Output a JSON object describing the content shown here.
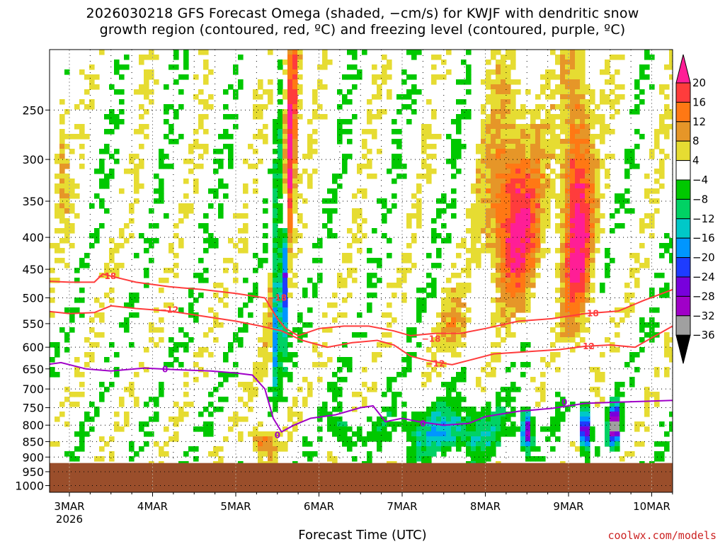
{
  "chart_data": {
    "type": "heatmap",
    "title_line1": "2026030218 GFS Forecast Omega (shaded, −cm/s) for KWJF with dendritic snow",
    "title_line2": "growth region (contoured, red, ºC) and freezing level (contoured, purple, ºC)",
    "xlabel": "Forecast Time (UTC)",
    "x_ticks": [
      "3MAR",
      "4MAR",
      "5MAR",
      "6MAR",
      "7MAR",
      "8MAR",
      "9MAR",
      "10MAR"
    ],
    "x_year": "2026",
    "y_ticks": [
      "250",
      "300",
      "350",
      "400",
      "450",
      "500",
      "550",
      "600",
      "650",
      "700",
      "750",
      "800",
      "850",
      "900",
      "950",
      "1000"
    ],
    "y_values": [
      250,
      300,
      350,
      400,
      450,
      500,
      550,
      600,
      650,
      700,
      750,
      800,
      850,
      900,
      950,
      1000
    ],
    "y_scale": "log-pressure, inverted",
    "ylim": [
      200,
      1025
    ],
    "xlim_days_label_range": [
      "3MAR",
      "10MAR"
    ],
    "grid": "dotted",
    "ground_level_hPa": 920,
    "ground_color": "#9a4e2b",
    "colorbar": {
      "ticks": [
        "20",
        "16",
        "12",
        "8",
        "4",
        "−4",
        "−8",
        "−12",
        "−16",
        "−20",
        "−24",
        "−28",
        "−32",
        "−36"
      ],
      "bands": [
        {
          "from": 20,
          "to": 24,
          "color": "#ff1e96"
        },
        {
          "from": 16,
          "to": 20,
          "color": "#ff3c3c"
        },
        {
          "from": 12,
          "to": 16,
          "color": "#ff7814"
        },
        {
          "from": 8,
          "to": 12,
          "color": "#e69628"
        },
        {
          "from": 4,
          "to": 8,
          "color": "#e6dc32"
        },
        {
          "from": -4,
          "to": 4,
          "color": "#ffffff"
        },
        {
          "from": -8,
          "to": -4,
          "color": "#00c800"
        },
        {
          "from": -12,
          "to": -8,
          "color": "#00d264"
        },
        {
          "from": -16,
          "to": -12,
          "color": "#00c8c8"
        },
        {
          "from": -20,
          "to": -16,
          "color": "#0096ff"
        },
        {
          "from": -24,
          "to": -20,
          "color": "#1e3cff"
        },
        {
          "from": -28,
          "to": -24,
          "color": "#7800dc"
        },
        {
          "from": -32,
          "to": -28,
          "color": "#a000c8"
        },
        {
          "from": -36,
          "to": -32,
          "color": "#a0a0a0"
        },
        {
          "from": -40,
          "to": -36,
          "color": "#000000"
        }
      ]
    },
    "contours": [
      {
        "name": "-18",
        "label": "−18",
        "color": "#ff3c3c",
        "x_day": [
          2.71,
          3.0,
          3.3,
          3.4,
          3.6,
          3.8,
          4.2,
          4.6,
          5.0,
          5.35,
          5.5,
          5.6,
          5.75,
          6.0,
          6.3,
          6.6,
          6.9,
          7.1,
          7.4,
          7.7,
          8.0,
          8.4,
          8.8,
          9.2,
          9.6,
          9.9,
          10.25
        ],
        "p_hPa": [
          470,
          472,
          472,
          458,
          465,
          472,
          480,
          485,
          492,
          500,
          540,
          560,
          575,
          560,
          555,
          555,
          565,
          575,
          570,
          570,
          560,
          545,
          540,
          530,
          525,
          505,
          485
        ]
      },
      {
        "name": "-12",
        "label": "−12",
        "color": "#ff3c3c",
        "x_day": [
          2.71,
          3.0,
          3.3,
          3.5,
          3.8,
          4.2,
          4.6,
          5.0,
          5.3,
          5.55,
          5.8,
          6.1,
          6.4,
          6.7,
          6.9,
          7.1,
          7.3,
          7.6,
          7.8,
          8.1,
          8.5,
          8.9,
          9.2,
          9.5,
          9.8,
          10.25
        ],
        "p_hPa": [
          525,
          530,
          528,
          515,
          520,
          525,
          535,
          545,
          555,
          565,
          585,
          600,
          590,
          585,
          595,
          620,
          630,
          640,
          630,
          615,
          610,
          605,
          598,
          595,
          600,
          555
        ]
      },
      {
        "name": "0",
        "label": "0",
        "color": "#a000c8",
        "x_day": [
          2.71,
          2.9,
          3.2,
          3.5,
          3.9,
          4.3,
          4.7,
          5.0,
          5.2,
          5.35,
          5.45,
          5.55,
          5.7,
          5.9,
          6.2,
          6.5,
          6.65,
          6.8,
          7.0,
          7.2,
          7.5,
          7.8,
          8.0,
          8.4,
          8.8,
          9.2,
          9.6,
          10.0,
          10.25
        ],
        "p_hPa": [
          640,
          635,
          650,
          655,
          648,
          652,
          655,
          660,
          665,
          700,
          780,
          820,
          800,
          780,
          770,
          750,
          745,
          790,
          780,
          790,
          800,
          795,
          775,
          760,
          752,
          738,
          735,
          732,
          730
        ]
      }
    ],
    "contour_labels": [
      {
        "text": "−18",
        "x_day": 3.45,
        "p_hPa": 462
      },
      {
        "text": "−18",
        "x_day": 5.5,
        "p_hPa": 500
      },
      {
        "text": "−12",
        "x_day": 4.2,
        "p_hPa": 523
      },
      {
        "text": "−12",
        "x_day": 7.4,
        "p_hPa": 638
      },
      {
        "text": "−18",
        "x_day": 7.35,
        "p_hPa": 582
      },
      {
        "text": "−18",
        "x_day": 9.25,
        "p_hPa": 530
      },
      {
        "text": "−12",
        "x_day": 9.2,
        "p_hPa": 598
      },
      {
        "text": "0",
        "x_day": 4.15,
        "p_hPa": 651
      },
      {
        "text": "0",
        "x_day": 5.5,
        "p_hPa": 830
      },
      {
        "text": "0",
        "x_day": 7.25,
        "p_hPa": 795
      },
      {
        "text": "0",
        "x_day": 8.95,
        "p_hPa": 735
      }
    ],
    "omega_features": [
      {
        "x_day": 5.6,
        "p_hPa": 330,
        "width": 0.22,
        "height_hPa": 500,
        "level": 28,
        "tilt": 0.3
      },
      {
        "x_day": 5.5,
        "p_hPa": 470,
        "width": 0.12,
        "height_hPa": 420,
        "level": -38,
        "tilt": 0.05
      },
      {
        "x_day": 5.58,
        "p_hPa": 440,
        "width": 0.07,
        "height_hPa": 300,
        "level": -38,
        "tilt": 0.0
      },
      {
        "x_day": 7.65,
        "p_hPa": 560,
        "width": 0.45,
        "height_hPa": 150,
        "level": 10,
        "tilt": 0.0
      },
      {
        "x_day": 8.35,
        "p_hPa": 380,
        "width": 0.75,
        "height_hPa": 300,
        "level": 22,
        "tilt": 0.0
      },
      {
        "x_day": 9.1,
        "p_hPa": 380,
        "width": 0.45,
        "height_hPa": 420,
        "level": 22,
        "tilt": 0.0
      },
      {
        "x_day": 8.5,
        "p_hPa": 820,
        "width": 0.15,
        "height_hPa": 130,
        "level": -30,
        "tilt": 0.0
      },
      {
        "x_day": 9.2,
        "p_hPa": 810,
        "width": 0.15,
        "height_hPa": 140,
        "level": -36,
        "tilt": 0.0
      },
      {
        "x_day": 9.55,
        "p_hPa": 800,
        "width": 0.15,
        "height_hPa": 140,
        "level": -38,
        "tilt": 0.0
      },
      {
        "x_day": 7.6,
        "p_hPa": 820,
        "width": 1.6,
        "height_hPa": 180,
        "level": -14,
        "tilt": 0.0
      },
      {
        "x_day": 5.3,
        "p_hPa": 850,
        "width": 0.4,
        "height_hPa": 120,
        "level": 14,
        "tilt": 0.0
      },
      {
        "x_day": 6.3,
        "p_hPa": 820,
        "width": 0.35,
        "height_hPa": 120,
        "level": -10,
        "tilt": 0.0
      },
      {
        "x_day": 2.9,
        "p_hPa": 300,
        "width": 0.2,
        "height_hPa": 200,
        "level": 8,
        "tilt": 0.0
      }
    ]
  },
  "credit": "coolwx.com/models"
}
